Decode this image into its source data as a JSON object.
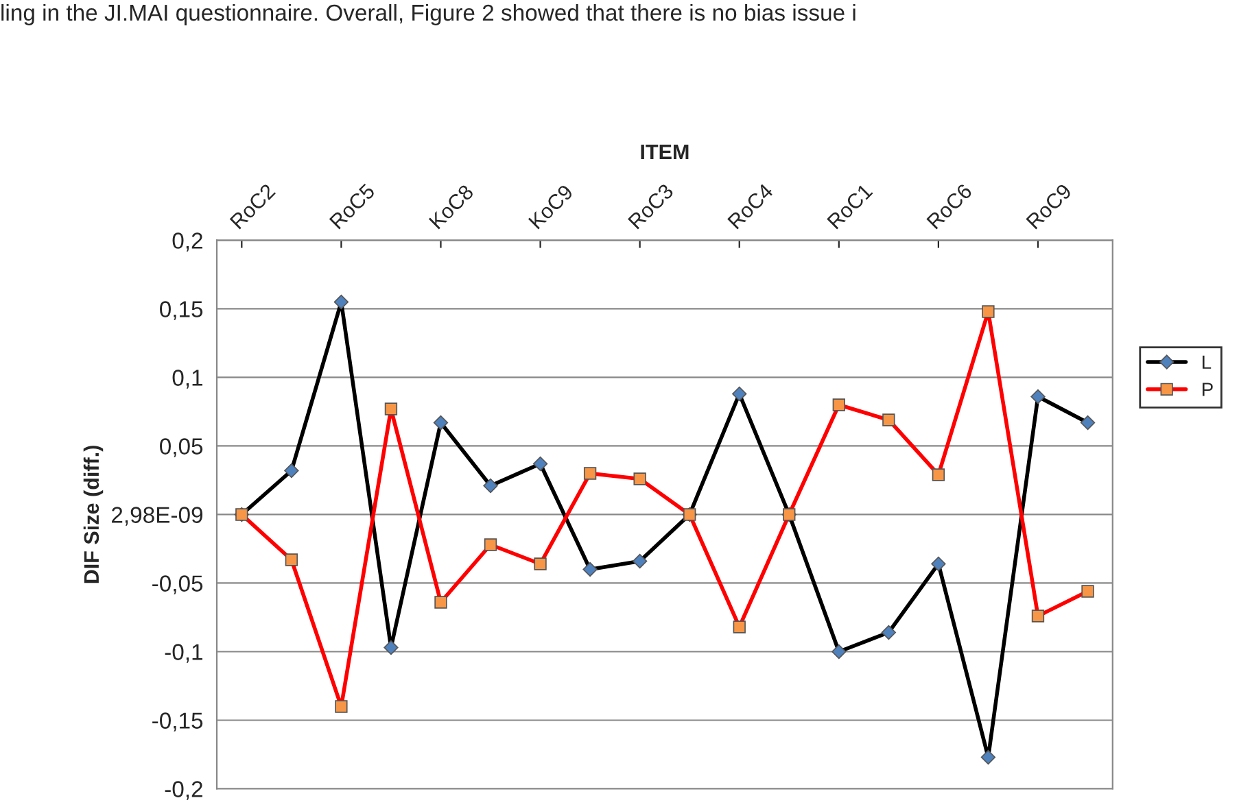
{
  "chart_data": {
    "type": "line",
    "annotations": [
      "ling in the JI.MAI questionnaire. Overall, Figure 2 showed that there is no bias issue i"
    ],
    "xlabel": "ITEM",
    "ylabel": "DIF Size (diff.)",
    "categories": [
      "RoC2",
      null,
      "RoC5",
      null,
      "KoC8",
      null,
      "KoC9",
      null,
      "RoC3",
      null,
      "RoC4",
      null,
      "RoC1",
      null,
      "RoC6",
      null,
      "RoC9",
      null
    ],
    "series": [
      {
        "name": "L",
        "color": "#000000",
        "marker": "diamond",
        "values": [
          0,
          0.032,
          0.155,
          -0.097,
          0.067,
          0.021,
          0.037,
          -0.04,
          -0.034,
          0,
          0.088,
          0,
          -0.1,
          -0.086,
          -0.036,
          -0.177,
          0.086,
          0.067
        ]
      },
      {
        "name": "P",
        "color": "#ff0000",
        "marker": "square",
        "values": [
          0,
          -0.033,
          -0.14,
          0.077,
          -0.064,
          -0.022,
          -0.036,
          0.03,
          0.026,
          0,
          -0.082,
          0,
          0.08,
          0.069,
          0.029,
          0.148,
          -0.074,
          -0.056
        ]
      }
    ],
    "ylim": [
      -0.2,
      0.2
    ],
    "yticks": [
      {
        "value": -0.2,
        "label": "-0,2"
      },
      {
        "value": -0.15,
        "label": "-0,15"
      },
      {
        "value": -0.1,
        "label": "-0,1"
      },
      {
        "value": -0.05,
        "label": "-0,05"
      },
      {
        "value": 0,
        "label": "2,98E-09"
      },
      {
        "value": 0.05,
        "label": "0,05"
      },
      {
        "value": 0.1,
        "label": "0,1"
      },
      {
        "value": 0.15,
        "label": "0,15"
      },
      {
        "value": 0.2,
        "label": "0,2"
      }
    ],
    "grid": "y",
    "legend": "right",
    "line_style": "solid"
  }
}
